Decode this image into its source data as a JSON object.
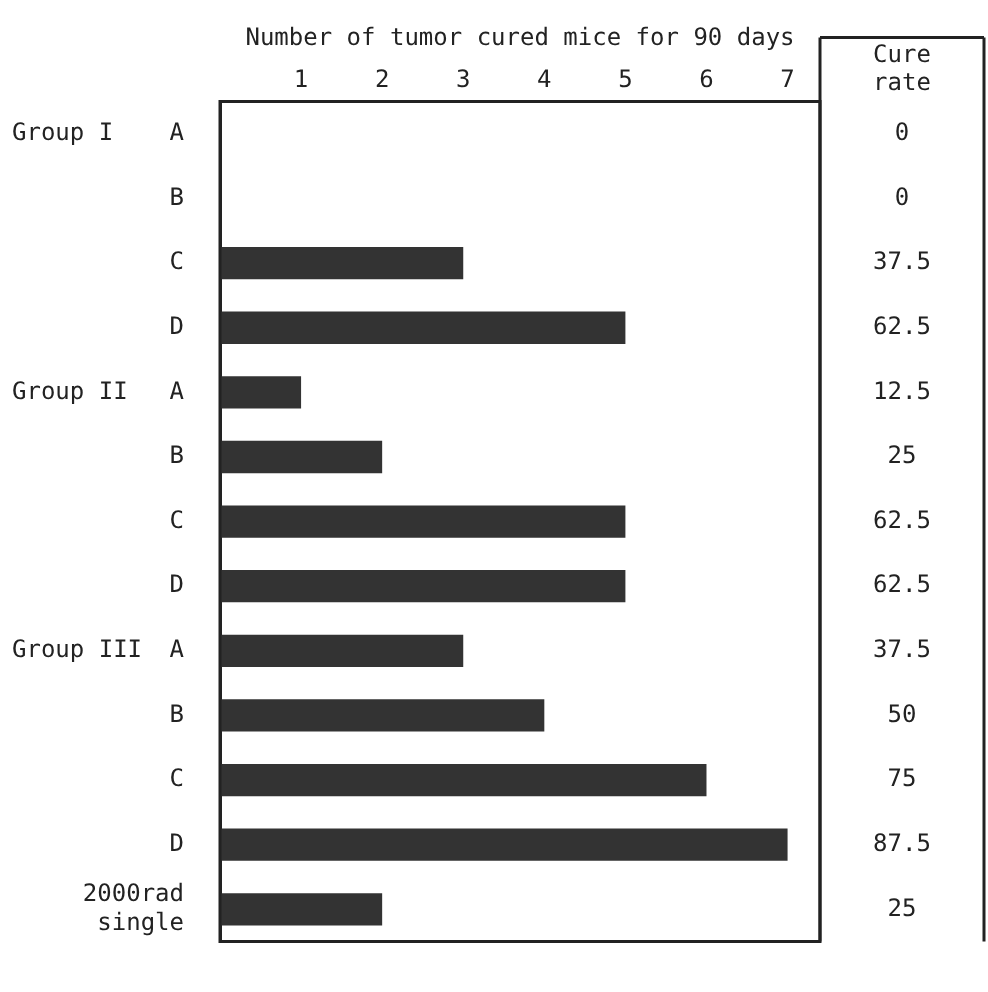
{
  "chart_data": {
    "type": "bar",
    "orientation": "horizontal",
    "xlabel": "Number of tumor cured mice for 90 days",
    "categories": [
      "A",
      "B",
      "C",
      "D",
      "A",
      "B",
      "C",
      "D",
      "A",
      "B",
      "C",
      "D",
      "2000rad single"
    ],
    "values": [
      0,
      0,
      3,
      5,
      1,
      2,
      5,
      5,
      3,
      4,
      6,
      7,
      2
    ],
    "color": "#333333",
    "xlim": [
      0,
      7.4
    ],
    "xticks": [
      1,
      2,
      3,
      4,
      5,
      6,
      7
    ],
    "grid": false,
    "legend": false,
    "annotations": [
      "Cure rate",
      "0",
      "0",
      "37.5",
      "62.5",
      "12.5",
      "25",
      "62.5",
      "62.5",
      "37.5",
      "50",
      "75",
      "87.5",
      "25",
      "Group I",
      "Group II",
      "Group III"
    ]
  }
}
